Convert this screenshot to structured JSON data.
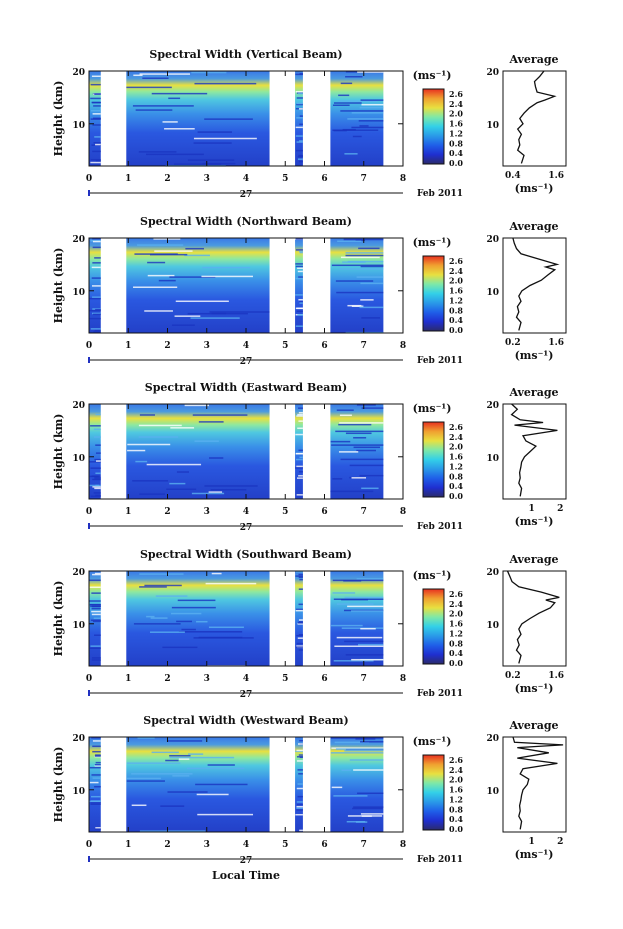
{
  "chart_data": {
    "type": "heatmap",
    "xlabel": "Local Time",
    "date_label": "Feb 2011",
    "day_label": "27",
    "ylabel": "Height (km)",
    "unit_label": "(ms⁻¹)",
    "average_title": "Average",
    "average_xlabel": "(ms⁻¹)",
    "x_range": [
      0,
      8
    ],
    "x_ticks": [
      "0",
      "1",
      "2",
      "3",
      "4",
      "5",
      "6",
      "7",
      "8"
    ],
    "y_range": [
      2,
      20
    ],
    "y_ticks": [
      "20",
      "10"
    ],
    "colorbar_ticks": [
      "2.6",
      "2.4",
      "2.0",
      "1.6",
      "1.2",
      "0.8",
      "0.4",
      "0.0"
    ],
    "colorbar_range": [
      0,
      2.8
    ],
    "colorbar_colors": [
      "#2b2b6b",
      "#1f2fd0",
      "#1f5fe8",
      "#2a9ae8",
      "#33d0e8",
      "#7ee8a8",
      "#e8e040",
      "#f0a030",
      "#e83020"
    ],
    "data_gaps": [
      [
        0.3,
        0.95
      ],
      [
        4.6,
        5.25
      ],
      [
        5.45,
        6.15
      ],
      [
        7.5,
        8.0
      ]
    ],
    "panels": [
      {
        "title": "Spectral Width (Vertical Beam)",
        "avg_xlim": [
          0.4,
          1.6
        ],
        "avg_ticks": [
          "0.4",
          "1.6"
        ],
        "avg_profile": [
          [
            2.5,
            0.75
          ],
          [
            4,
            0.8
          ],
          [
            5,
            0.68
          ],
          [
            6,
            0.72
          ],
          [
            7,
            0.7
          ],
          [
            8,
            0.75
          ],
          [
            9,
            0.68
          ],
          [
            10,
            0.78
          ],
          [
            11,
            0.72
          ],
          [
            12,
            0.8
          ],
          [
            13,
            0.9
          ],
          [
            14,
            1.05
          ],
          [
            14.5,
            1.2
          ],
          [
            15.2,
            1.38
          ],
          [
            16,
            1.05
          ],
          [
            17,
            1.02
          ],
          [
            18,
            1.0
          ],
          [
            19,
            1.1
          ],
          [
            20,
            1.18
          ]
        ]
      },
      {
        "title": "Spectral Width (Northward Beam)",
        "avg_xlim": [
          0.2,
          1.6
        ],
        "avg_ticks": [
          "0.2",
          "1.6"
        ],
        "avg_profile": [
          [
            2.5,
            0.55
          ],
          [
            4,
            0.6
          ],
          [
            5,
            0.5
          ],
          [
            6,
            0.55
          ],
          [
            7,
            0.52
          ],
          [
            8,
            0.6
          ],
          [
            9,
            0.55
          ],
          [
            10,
            0.62
          ],
          [
            11,
            0.8
          ],
          [
            12,
            1.05
          ],
          [
            13,
            1.2
          ],
          [
            14,
            1.35
          ],
          [
            14.5,
            1.15
          ],
          [
            15,
            1.4
          ],
          [
            16,
            1.0
          ],
          [
            17,
            0.6
          ],
          [
            18,
            0.5
          ],
          [
            19,
            0.45
          ],
          [
            20,
            0.42
          ]
        ]
      },
      {
        "title": "Spectral Width (Eastward Beam)",
        "avg_xlim": [
          0,
          2.2
        ],
        "avg_ticks": [
          "1",
          "2"
        ],
        "avg_profile": [
          [
            2.5,
            0.6
          ],
          [
            4,
            0.65
          ],
          [
            5,
            0.55
          ],
          [
            6,
            0.6
          ],
          [
            7,
            0.58
          ],
          [
            8,
            0.62
          ],
          [
            9,
            0.65
          ],
          [
            10,
            0.75
          ],
          [
            11,
            0.95
          ],
          [
            12,
            1.15
          ],
          [
            13,
            0.8
          ],
          [
            14,
            0.7
          ],
          [
            15,
            1.9
          ],
          [
            16,
            0.4
          ],
          [
            16.5,
            1.4
          ],
          [
            17,
            0.6
          ],
          [
            18,
            0.3
          ],
          [
            19,
            0.5
          ],
          [
            20,
            0.3
          ]
        ]
      },
      {
        "title": "Spectral Width (Southward Beam)",
        "avg_xlim": [
          0.2,
          1.6
        ],
        "avg_ticks": [
          "0.2",
          "1.6"
        ],
        "avg_profile": [
          [
            2.5,
            0.55
          ],
          [
            4,
            0.6
          ],
          [
            5,
            0.5
          ],
          [
            6,
            0.56
          ],
          [
            7,
            0.52
          ],
          [
            8,
            0.6
          ],
          [
            9,
            0.55
          ],
          [
            10,
            0.62
          ],
          [
            11,
            0.8
          ],
          [
            12,
            1.0
          ],
          [
            13,
            1.25
          ],
          [
            14,
            1.35
          ],
          [
            14.5,
            1.15
          ],
          [
            15,
            1.45
          ],
          [
            16,
            1.05
          ],
          [
            17,
            0.55
          ],
          [
            18,
            0.4
          ],
          [
            19,
            0.35
          ],
          [
            20,
            0.3
          ]
        ]
      },
      {
        "title": "Spectral Width (Westward Beam)",
        "avg_xlim": [
          0,
          2.2
        ],
        "avg_ticks": [
          "1",
          "2"
        ],
        "avg_profile": [
          [
            2.5,
            0.6
          ],
          [
            4,
            0.65
          ],
          [
            5,
            0.55
          ],
          [
            6,
            0.6
          ],
          [
            7,
            0.58
          ],
          [
            8,
            0.62
          ],
          [
            9,
            0.65
          ],
          [
            10,
            0.7
          ],
          [
            11,
            0.85
          ],
          [
            12,
            0.9
          ],
          [
            13,
            0.6
          ],
          [
            14,
            0.7
          ],
          [
            15,
            1.9
          ],
          [
            16,
            0.5
          ],
          [
            17,
            1.6
          ],
          [
            18,
            0.5
          ],
          [
            18.5,
            2.1
          ],
          [
            19,
            0.4
          ],
          [
            20,
            0.35
          ]
        ]
      }
    ]
  }
}
